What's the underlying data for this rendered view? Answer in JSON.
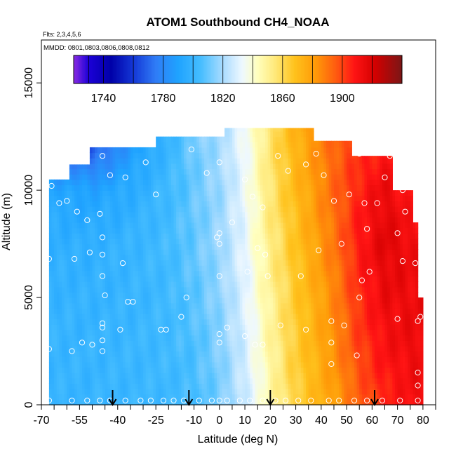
{
  "chart_data": {
    "type": "heatmap",
    "title": "ATOM1 Southbound CH4_NOAA",
    "subtitle_flights": "Flts: 2,3,4,5,6",
    "subtitle_dates": "MMDD: 0801,0803,0806,0808,0812",
    "xlabel": "Latitude (deg N)",
    "ylabel": "Altitude (m)",
    "xlim": [
      -70,
      85
    ],
    "ylim": [
      0,
      17000
    ],
    "x_ticks": [
      -70,
      -55,
      -40,
      -25,
      -10,
      0,
      10,
      20,
      30,
      40,
      50,
      60,
      70,
      80
    ],
    "x_tick_labels": [
      "-70",
      "-55",
      "-40",
      "-25",
      "-10",
      "0",
      "10",
      "20",
      "30",
      "40",
      "50",
      "60",
      "70",
      "80"
    ],
    "x_minor_ticks": [
      -65,
      -60,
      -50,
      -45,
      -35,
      -30,
      -20,
      -15,
      -5,
      5,
      15,
      25,
      35,
      45,
      55,
      65,
      75,
      85
    ],
    "y_ticks": [
      0,
      5000,
      10000,
      15000
    ],
    "y_tick_labels": [
      "0",
      "5000",
      "10000",
      "15000"
    ],
    "colorbar": {
      "range": [
        1720,
        1940
      ],
      "ticks": [
        1740,
        1780,
        1820,
        1860,
        1900
      ],
      "tick_labels": [
        "1740",
        "1780",
        "1820",
        "1860",
        "1900"
      ],
      "boundaries": [
        1720,
        1730,
        1740,
        1760,
        1780,
        1800,
        1820,
        1840,
        1860,
        1880,
        1900,
        1920,
        1940
      ],
      "stops": [
        {
          "v": 1720,
          "c": "#8a2be2"
        },
        {
          "v": 1730,
          "c": "#1c00d8"
        },
        {
          "v": 1745,
          "c": "#0000a8"
        },
        {
          "v": 1760,
          "c": "#1437d6"
        },
        {
          "v": 1775,
          "c": "#2f7cf6"
        },
        {
          "v": 1790,
          "c": "#1fa3ff"
        },
        {
          "v": 1805,
          "c": "#45bdff"
        },
        {
          "v": 1820,
          "c": "#a9dcff"
        },
        {
          "v": 1833,
          "c": "#eef8ff"
        },
        {
          "v": 1843,
          "c": "#ffffbf"
        },
        {
          "v": 1855,
          "c": "#ffe97a"
        },
        {
          "v": 1868,
          "c": "#ffc21c"
        },
        {
          "v": 1882,
          "c": "#ff9a08"
        },
        {
          "v": 1896,
          "c": "#ff5a10"
        },
        {
          "v": 1908,
          "c": "#ff1414"
        },
        {
          "v": 1922,
          "c": "#d30000"
        },
        {
          "v": 1940,
          "c": "#7a1616"
        }
      ]
    },
    "arrows_at_latitude": [
      -42,
      -12,
      20,
      61
    ],
    "field_model": {
      "lat_grid": [
        -67,
        -50,
        -35,
        -20,
        -10,
        0,
        10,
        20,
        28,
        35,
        45,
        55,
        65,
        78
      ],
      "alt_grid": [
        0,
        2500,
        5000,
        7500,
        10000,
        12500
      ],
      "values": [
        [
          1800,
          1800,
          1801,
          1802,
          1805,
          1812,
          1826,
          1846,
          1860,
          1868,
          1880,
          1894,
          1905,
          1912
        ],
        [
          1800,
          1800,
          1801,
          1803,
          1806,
          1814,
          1828,
          1848,
          1862,
          1870,
          1884,
          1900,
          1910,
          1914
        ],
        [
          1799,
          1799,
          1800,
          1803,
          1808,
          1816,
          1830,
          1850,
          1863,
          1872,
          1886,
          1904,
          1914,
          1914
        ],
        [
          1797,
          1797,
          1800,
          1804,
          1810,
          1818,
          1832,
          1853,
          1865,
          1875,
          1890,
          1908,
          1918,
          1912
        ],
        [
          1792,
          1790,
          1795,
          1803,
          1810,
          1818,
          1833,
          1856,
          1868,
          1878,
          1893,
          1906,
          1915,
          1905
        ],
        [
          1768,
          1760,
          1785,
          1800,
          1812,
          1820,
          1834,
          1857,
          1870,
          1880,
          1894,
          1902,
          1906,
          1900
        ]
      ],
      "coverage_top_by_lat": [
        {
          "lat": -67,
          "alt": 10500
        },
        {
          "lat": -59,
          "alt": 10500
        },
        {
          "lat": -59,
          "alt": 11200
        },
        {
          "lat": -51,
          "alt": 11200
        },
        {
          "lat": -51,
          "alt": 12000
        },
        {
          "lat": -25,
          "alt": 12000
        },
        {
          "lat": -25,
          "alt": 12500
        },
        {
          "lat": 2,
          "alt": 12500
        },
        {
          "lat": 2,
          "alt": 12900
        },
        {
          "lat": 37,
          "alt": 12900
        },
        {
          "lat": 37,
          "alt": 12300
        },
        {
          "lat": 52,
          "alt": 12300
        },
        {
          "lat": 52,
          "alt": 11600
        },
        {
          "lat": 68,
          "alt": 11600
        },
        {
          "lat": 68,
          "alt": 10000
        },
        {
          "lat": 76,
          "alt": 10000
        },
        {
          "lat": 76,
          "alt": 8500
        },
        {
          "lat": 78,
          "alt": 8500
        },
        {
          "lat": 78,
          "alt": 5000
        },
        {
          "lat": 80,
          "alt": 5000
        },
        {
          "lat": 80,
          "alt": 0
        }
      ],
      "lat_min": -67
    },
    "observations": [
      {
        "x": -67,
        "y": 200
      },
      {
        "x": -58,
        "y": 200
      },
      {
        "x": -52,
        "y": 200
      },
      {
        "x": -47,
        "y": 200
      },
      {
        "x": -43,
        "y": 200
      },
      {
        "x": -37,
        "y": 200
      },
      {
        "x": -31,
        "y": 200
      },
      {
        "x": -27,
        "y": 200
      },
      {
        "x": -22,
        "y": 200
      },
      {
        "x": -18,
        "y": 200
      },
      {
        "x": -14,
        "y": 200
      },
      {
        "x": -8,
        "y": 200
      },
      {
        "x": -3,
        "y": 200
      },
      {
        "x": 0,
        "y": 200
      },
      {
        "x": 3,
        "y": 200
      },
      {
        "x": 8,
        "y": 200
      },
      {
        "x": 12,
        "y": 200
      },
      {
        "x": 17,
        "y": 200
      },
      {
        "x": 22,
        "y": 200
      },
      {
        "x": 26,
        "y": 200
      },
      {
        "x": 31,
        "y": 200
      },
      {
        "x": 36,
        "y": 200
      },
      {
        "x": 43,
        "y": 200
      },
      {
        "x": 47,
        "y": 200
      },
      {
        "x": 53,
        "y": 200
      },
      {
        "x": 58,
        "y": 200
      },
      {
        "x": 64,
        "y": 200
      },
      {
        "x": 71,
        "y": 200
      },
      {
        "x": 78,
        "y": 200
      },
      {
        "x": 78,
        "y": 900
      },
      {
        "x": 78,
        "y": 1500
      },
      {
        "x": 78,
        "y": 3900
      },
      {
        "x": 79,
        "y": 4100
      },
      {
        "x": 77,
        "y": 6600
      },
      {
        "x": 72,
        "y": 6700
      },
      {
        "x": -67,
        "y": 2600
      },
      {
        "x": -58,
        "y": 2500
      },
      {
        "x": -54,
        "y": 2900
      },
      {
        "x": -50,
        "y": 2800
      },
      {
        "x": -46,
        "y": 2500
      },
      {
        "x": -46,
        "y": 3000
      },
      {
        "x": -46,
        "y": 3600
      },
      {
        "x": -46,
        "y": 3800
      },
      {
        "x": -39,
        "y": 3500
      },
      {
        "x": -23,
        "y": 3500
      },
      {
        "x": -21,
        "y": 3500
      },
      {
        "x": -15,
        "y": 4100
      },
      {
        "x": 0,
        "y": 3300
      },
      {
        "x": 0,
        "y": 2900
      },
      {
        "x": 3,
        "y": 3600
      },
      {
        "x": 10,
        "y": 3200
      },
      {
        "x": 14,
        "y": 2800
      },
      {
        "x": 17,
        "y": 2800
      },
      {
        "x": 24,
        "y": 3700
      },
      {
        "x": 34,
        "y": 3500
      },
      {
        "x": 44,
        "y": 2900
      },
      {
        "x": 44,
        "y": 3900
      },
      {
        "x": 49,
        "y": 3700
      },
      {
        "x": 44,
        "y": 1900
      },
      {
        "x": 54,
        "y": 2300
      },
      {
        "x": 70,
        "y": 4000
      },
      {
        "x": -45,
        "y": 5100
      },
      {
        "x": -36,
        "y": 4800
      },
      {
        "x": -34,
        "y": 4800
      },
      {
        "x": -13,
        "y": 5000
      },
      {
        "x": -67,
        "y": 6800
      },
      {
        "x": -57,
        "y": 6800
      },
      {
        "x": -51,
        "y": 7100
      },
      {
        "x": -46,
        "y": 7000
      },
      {
        "x": -46,
        "y": 6000
      },
      {
        "x": -38,
        "y": 6600
      },
      {
        "x": 0,
        "y": 6000
      },
      {
        "x": 11,
        "y": 6200
      },
      {
        "x": 15,
        "y": 7300
      },
      {
        "x": 19,
        "y": 6000
      },
      {
        "x": 18,
        "y": 7000
      },
      {
        "x": 32,
        "y": 6000
      },
      {
        "x": 39,
        "y": 7200
      },
      {
        "x": 48,
        "y": 7500
      },
      {
        "x": 56,
        "y": 5800
      },
      {
        "x": 59,
        "y": 6200
      },
      {
        "x": 55,
        "y": 5000
      },
      {
        "x": -68,
        "y": 10200
      },
      {
        "x": -66,
        "y": 10200
      },
      {
        "x": -63,
        "y": 9400
      },
      {
        "x": -60,
        "y": 9500
      },
      {
        "x": -56,
        "y": 9000
      },
      {
        "x": -52,
        "y": 8600
      },
      {
        "x": -47,
        "y": 8900
      },
      {
        "x": -46,
        "y": 7800
      },
      {
        "x": -46,
        "y": 11600
      },
      {
        "x": -43,
        "y": 10700
      },
      {
        "x": -37,
        "y": 10600
      },
      {
        "x": -29,
        "y": 11300
      },
      {
        "x": -25,
        "y": 9800
      },
      {
        "x": -11,
        "y": 11900
      },
      {
        "x": -5,
        "y": 10800
      },
      {
        "x": 0,
        "y": 11300
      },
      {
        "x": -1,
        "y": 7800
      },
      {
        "x": 0,
        "y": 8000
      },
      {
        "x": 0,
        "y": 7500
      },
      {
        "x": 5,
        "y": 8500
      },
      {
        "x": 10,
        "y": 10500
      },
      {
        "x": 13,
        "y": 9700
      },
      {
        "x": 17,
        "y": 9200
      },
      {
        "x": 23,
        "y": 11600
      },
      {
        "x": 27,
        "y": 10900
      },
      {
        "x": 34,
        "y": 11200
      },
      {
        "x": 38,
        "y": 11700
      },
      {
        "x": 41,
        "y": 10700
      },
      {
        "x": 45,
        "y": 9500
      },
      {
        "x": 51,
        "y": 9800
      },
      {
        "x": 55,
        "y": 11700
      },
      {
        "x": 57,
        "y": 9400
      },
      {
        "x": 58,
        "y": 8200
      },
      {
        "x": 62,
        "y": 9400
      },
      {
        "x": 65,
        "y": 10600
      },
      {
        "x": 67,
        "y": 11600
      },
      {
        "x": 70,
        "y": 8000
      },
      {
        "x": 73,
        "y": 9000
      },
      {
        "x": 72,
        "y": 10000
      }
    ]
  }
}
